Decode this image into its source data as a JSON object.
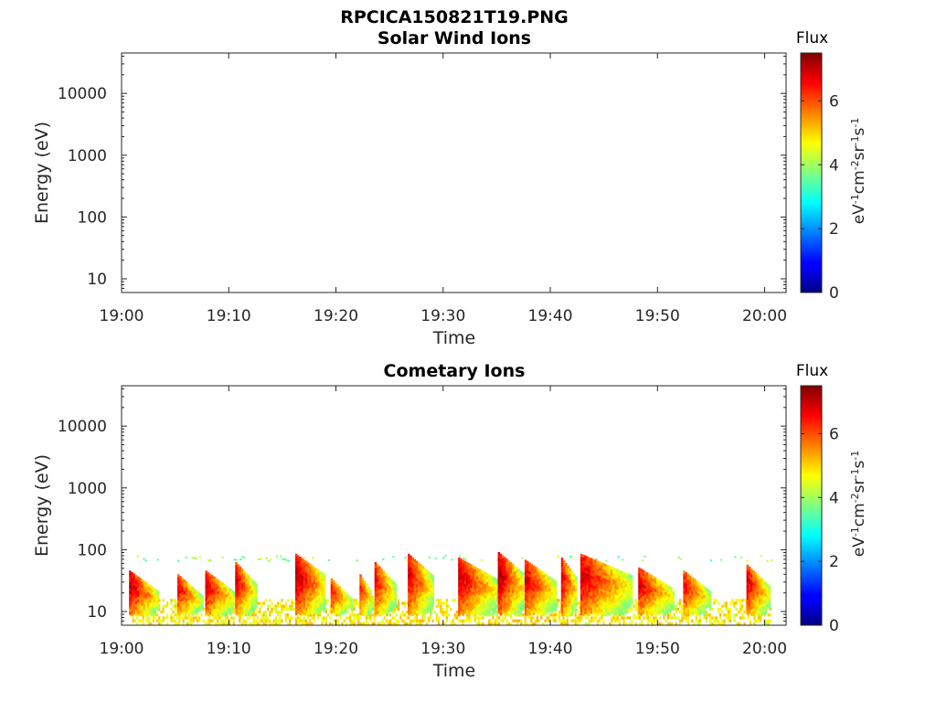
{
  "figure_title": "RPCICA150821T19.PNG",
  "chart_data": [
    {
      "type": "heatmap",
      "title": "Solar Wind Ions",
      "xlabel": "Time",
      "ylabel": "Energy (eV)",
      "x_ticks": [
        "19:00",
        "19:10",
        "19:20",
        "19:30",
        "19:40",
        "19:50",
        "20:00"
      ],
      "xlim_minutes": [
        0,
        62
      ],
      "y_scale": "log",
      "y_ticks": [
        10,
        100,
        1000,
        10000
      ],
      "y_tick_labels": [
        "10",
        "100",
        "1000",
        "10000"
      ],
      "ylim": [
        6,
        45000
      ],
      "grid": false,
      "colorbar": {
        "label": "Flux",
        "units": "eV-1cm-2sr-1s-1",
        "ticks": [
          0,
          2,
          4,
          6
        ],
        "range": [
          0,
          7.5
        ],
        "colormap": "jet"
      },
      "bursts": []
    },
    {
      "type": "heatmap",
      "title": "Cometary Ions",
      "xlabel": "Time",
      "ylabel": "Energy (eV)",
      "x_ticks": [
        "19:00",
        "19:10",
        "19:20",
        "19:30",
        "19:40",
        "19:50",
        "20:00"
      ],
      "xlim_minutes": [
        0,
        62
      ],
      "y_scale": "log",
      "y_ticks": [
        10,
        100,
        1000,
        10000
      ],
      "y_tick_labels": [
        "10",
        "100",
        "1000",
        "10000"
      ],
      "ylim": [
        6,
        45000
      ],
      "grid": false,
      "colorbar": {
        "label": "Flux",
        "units": "eV-1cm-2sr-1s-1",
        "ticks": [
          0,
          2,
          4,
          6
        ],
        "range": [
          0,
          7.5
        ],
        "colormap": "jet"
      },
      "bursts": [
        {
          "start_min": 0.7,
          "end_min": 3.5,
          "peak_energy_ev": 40,
          "peak_flux": 7.2
        },
        {
          "start_min": 5.2,
          "end_min": 7.5,
          "peak_energy_ev": 35,
          "peak_flux": 6.8
        },
        {
          "start_min": 7.8,
          "end_min": 10.5,
          "peak_energy_ev": 40,
          "peak_flux": 7.0
        },
        {
          "start_min": 10.6,
          "end_min": 12.5,
          "peak_energy_ev": 55,
          "peak_flux": 6.9
        },
        {
          "start_min": 16.2,
          "end_min": 19.0,
          "peak_energy_ev": 75,
          "peak_flux": 7.3
        },
        {
          "start_min": 19.5,
          "end_min": 21.5,
          "peak_energy_ev": 30,
          "peak_flux": 6.6
        },
        {
          "start_min": 22.2,
          "end_min": 23.5,
          "peak_energy_ev": 35,
          "peak_flux": 6.5
        },
        {
          "start_min": 23.6,
          "end_min": 25.5,
          "peak_energy_ev": 55,
          "peak_flux": 6.8
        },
        {
          "start_min": 26.7,
          "end_min": 29.0,
          "peak_energy_ev": 75,
          "peak_flux": 7.0
        },
        {
          "start_min": 31.4,
          "end_min": 35.0,
          "peak_energy_ev": 65,
          "peak_flux": 7.1
        },
        {
          "start_min": 35.1,
          "end_min": 37.5,
          "peak_energy_ev": 80,
          "peak_flux": 7.3
        },
        {
          "start_min": 37.6,
          "end_min": 40.5,
          "peak_energy_ev": 60,
          "peak_flux": 7.0
        },
        {
          "start_min": 41.0,
          "end_min": 42.5,
          "peak_energy_ev": 65,
          "peak_flux": 6.9
        },
        {
          "start_min": 42.8,
          "end_min": 47.5,
          "peak_energy_ev": 75,
          "peak_flux": 7.1
        },
        {
          "start_min": 48.2,
          "end_min": 51.5,
          "peak_energy_ev": 45,
          "peak_flux": 6.9
        },
        {
          "start_min": 52.4,
          "end_min": 55.0,
          "peak_energy_ev": 40,
          "peak_flux": 6.7
        },
        {
          "start_min": 58.3,
          "end_min": 60.4,
          "peak_energy_ev": 50,
          "peak_flux": 7.0
        }
      ],
      "background_band_ev": [
        7,
        16
      ],
      "background_flux": 4.9,
      "sparse_high_energy_ev": 75,
      "sparse_high_energy_flux": 3.2
    }
  ]
}
